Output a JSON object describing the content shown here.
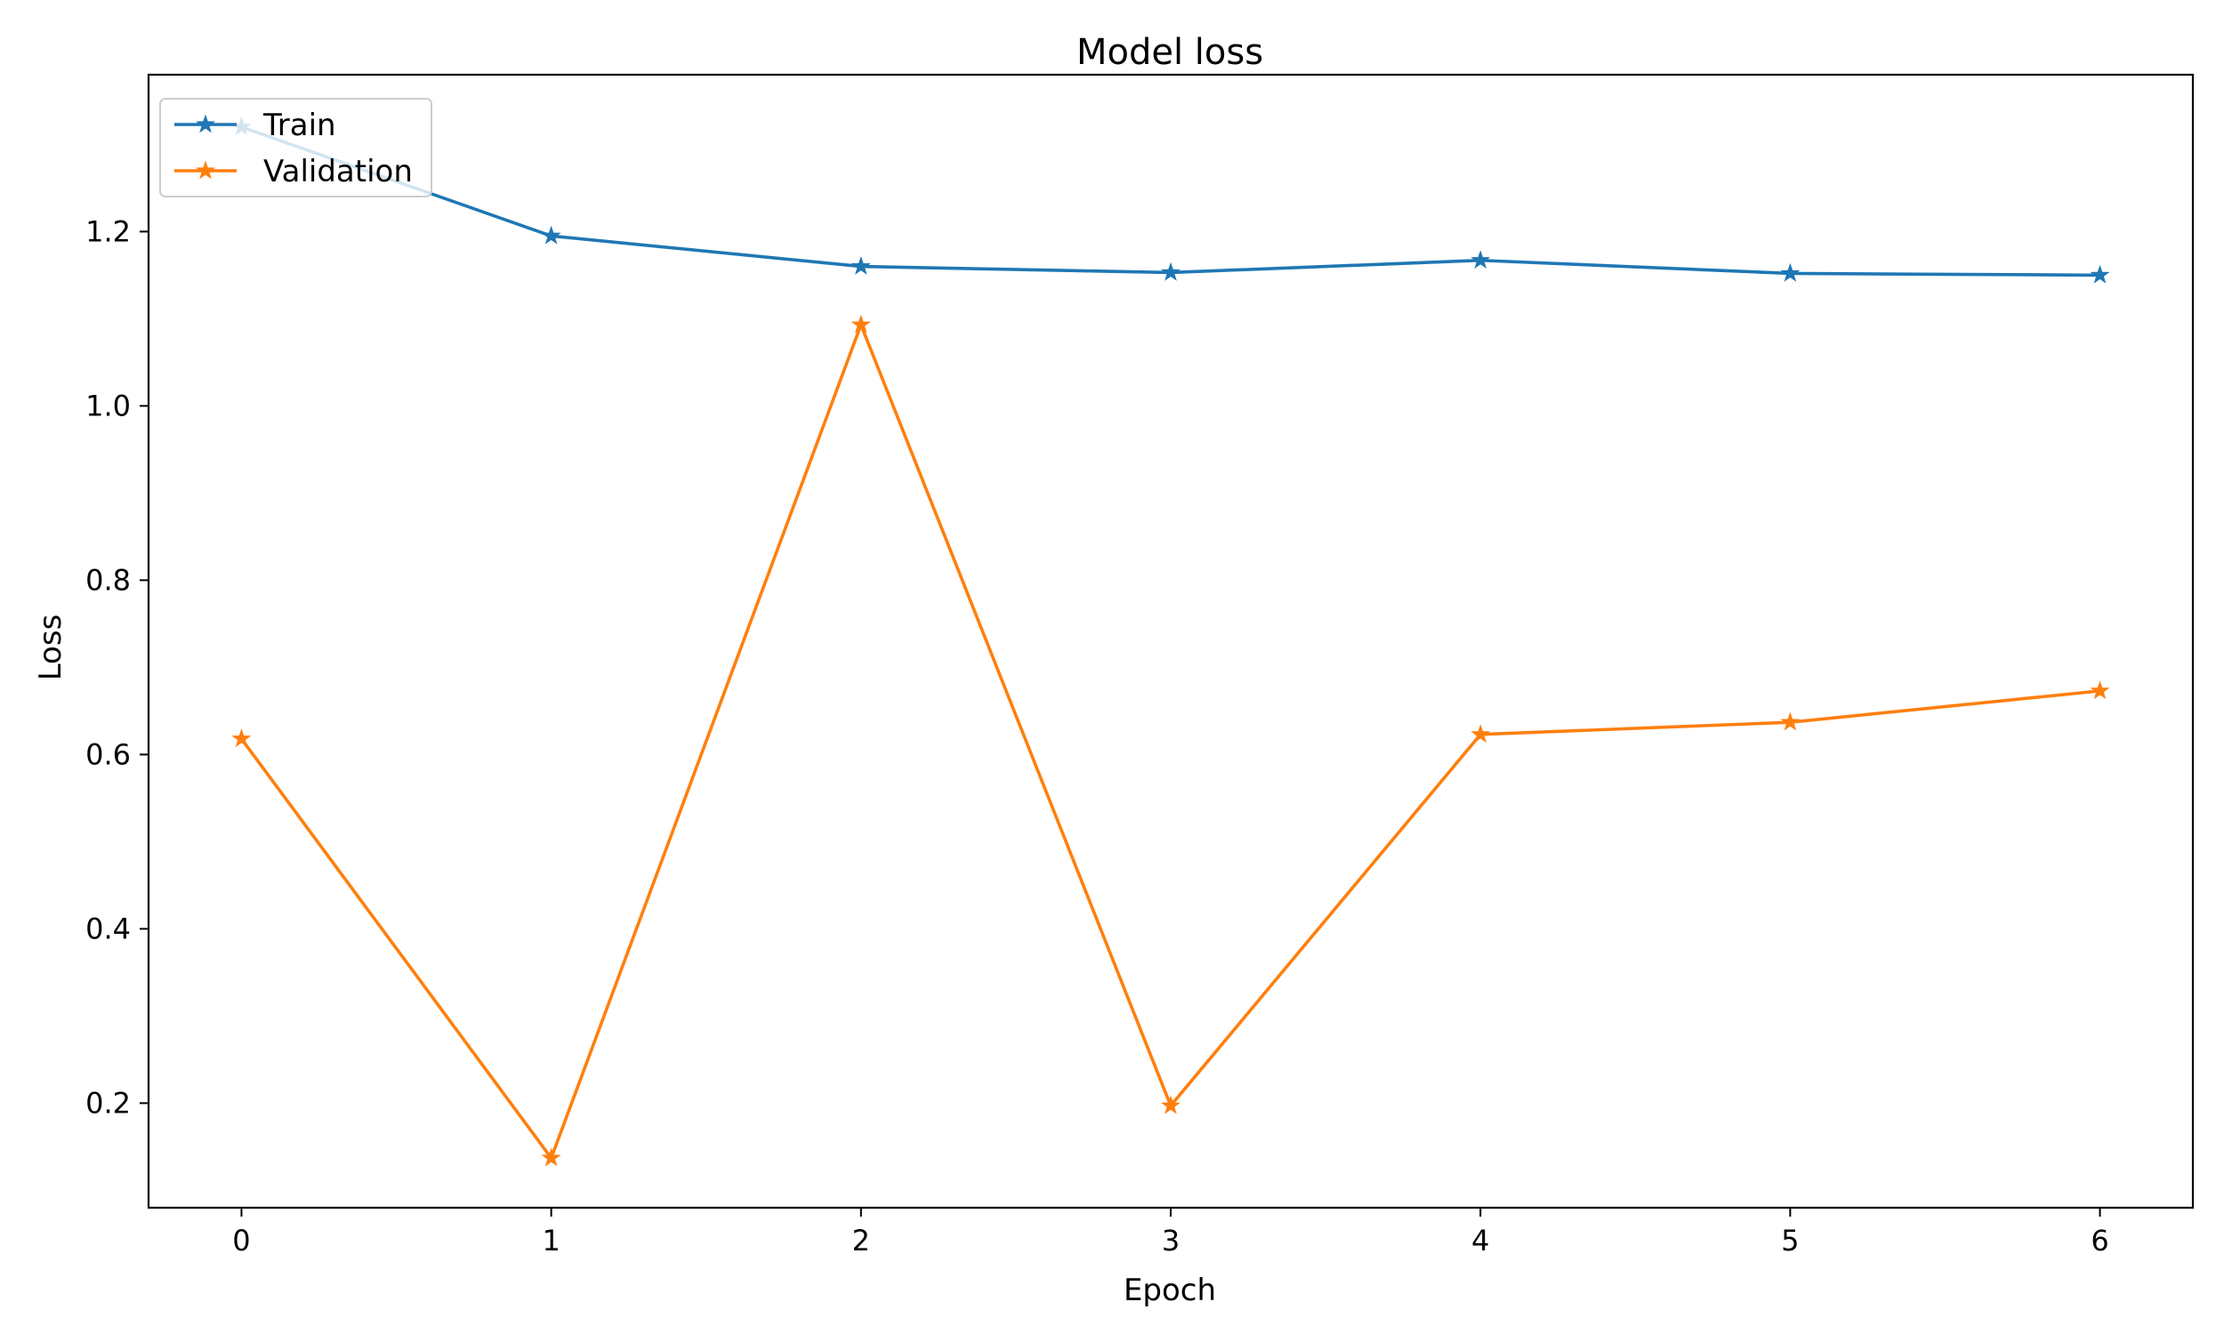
{
  "chart_data": {
    "type": "line",
    "title": "Model loss",
    "xlabel": "Epoch",
    "ylabel": "Loss",
    "x": [
      0,
      1,
      2,
      3,
      4,
      5,
      6
    ],
    "xticks": [
      "0",
      "1",
      "2",
      "3",
      "4",
      "5",
      "6"
    ],
    "yticks": [
      "0.2",
      "0.4",
      "0.6",
      "0.8",
      "1.0",
      "1.2"
    ],
    "ytick_values": [
      0.2,
      0.4,
      0.6,
      0.8,
      1.0,
      1.2
    ],
    "xlim": [
      -0.3,
      6.3
    ],
    "ylim": [
      0.08,
      1.38
    ],
    "grid": false,
    "legend_position": "top-left",
    "marker": "star",
    "series": [
      {
        "name": "Train",
        "color": "#1f77b4",
        "values": [
          1.32,
          1.195,
          1.16,
          1.153,
          1.167,
          1.152,
          1.15
        ]
      },
      {
        "name": "Validation",
        "color": "#ff7f0e",
        "values": [
          0.618,
          0.137,
          1.093,
          0.197,
          0.623,
          0.637,
          0.673
        ]
      }
    ]
  }
}
